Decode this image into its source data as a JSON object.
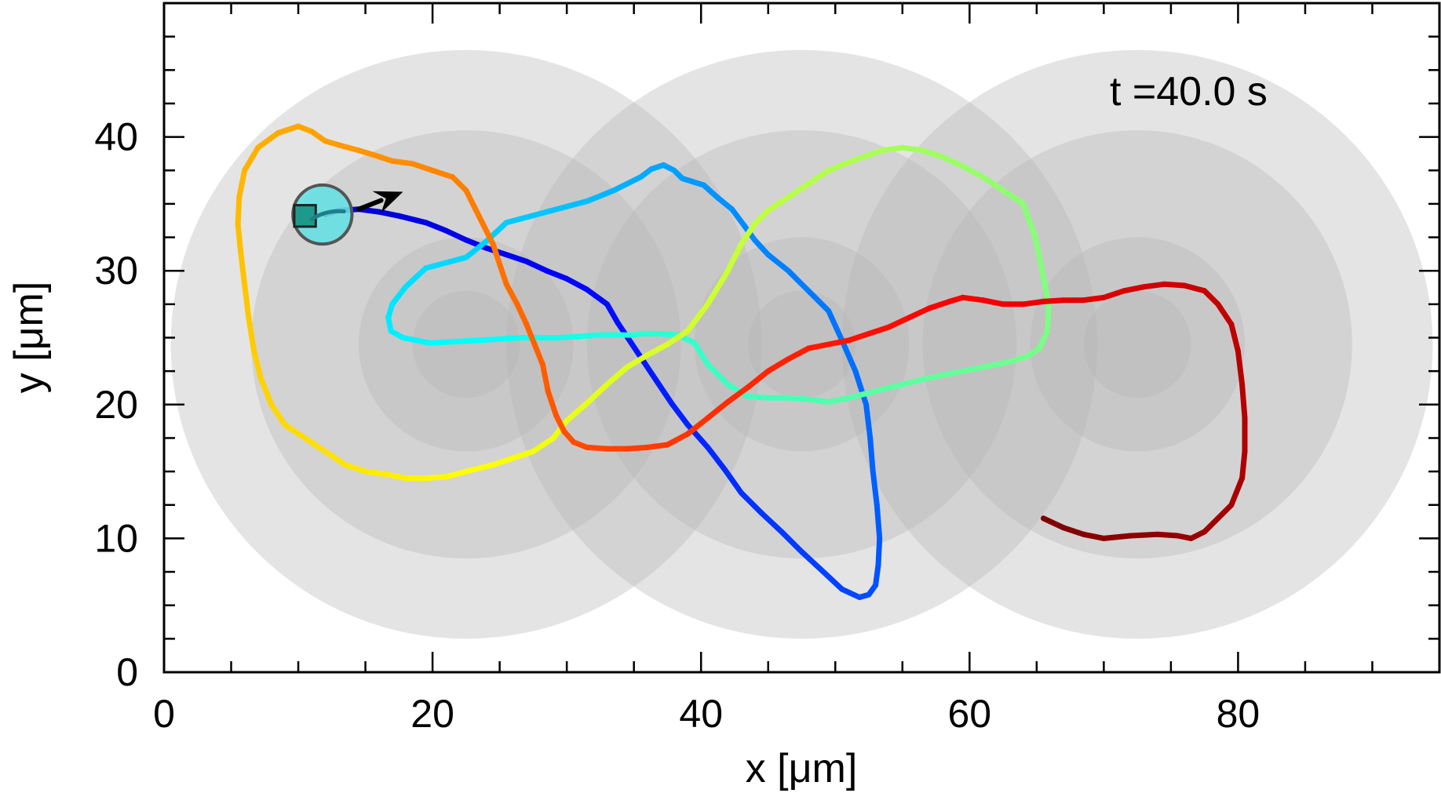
{
  "chart_data": {
    "type": "line",
    "title": "",
    "xlabel": "x [μm]",
    "ylabel": "y [μm]",
    "xlim": [
      0,
      95
    ],
    "ylim": [
      0,
      50
    ],
    "xticks": [
      0,
      20,
      40,
      60,
      80
    ],
    "xtick_labels": [
      "0",
      "20",
      "40",
      "60",
      "80"
    ],
    "yticks": [
      0,
      10,
      20,
      30,
      40
    ],
    "ytick_labels": [
      "0",
      "10",
      "20",
      "30",
      "40"
    ],
    "x_minor_step": 5,
    "y_minor_step": 2.5,
    "grid": false,
    "annotation": "t =40.0 s",
    "colormap": "jet (trajectory colored by time, blue-violet at start to dark red at end)",
    "obstacles": [
      {
        "name": "left",
        "center": [
          22.5,
          24.5
        ],
        "radii": [
          22,
          16,
          8,
          4
        ]
      },
      {
        "name": "middle",
        "center": [
          47.5,
          24.5
        ],
        "radii": [
          22,
          16,
          8,
          4
        ]
      },
      {
        "name": "right",
        "center": [
          72.5,
          24.5
        ],
        "radii": [
          22,
          16,
          8,
          4
        ]
      }
    ],
    "trajectory": {
      "name": "cell path",
      "x": [
        12.0,
        13.0,
        14.5,
        16.0,
        17.5,
        19.5,
        21.0,
        22.5,
        24.0,
        25.5,
        27.0,
        28.5,
        30.0,
        31.5,
        33.0,
        33.8,
        34.8,
        35.8,
        36.8,
        37.8,
        39.0,
        40.5,
        41.8,
        43.0,
        44.5,
        46.0,
        47.5,
        49.0,
        50.5,
        51.8,
        52.5,
        53.0,
        53.2,
        53.3,
        53.1,
        52.8,
        52.6,
        52.3,
        51.5,
        50.5,
        49.5,
        48.0,
        46.5,
        45.0,
        44.0,
        43.2,
        42.3,
        41.2,
        40.2,
        38.6,
        38.0,
        37.2,
        36.3,
        35.5,
        34.5,
        33.5,
        32.5,
        31.5,
        30.0,
        28.5,
        27.0,
        25.5,
        24.0,
        22.5,
        21.0,
        19.5,
        18.0,
        17.0,
        16.7,
        16.9,
        17.8,
        18.8,
        19.8,
        21.5,
        23.5,
        25.0,
        26.5,
        28.0,
        29.5,
        31.0,
        32.5,
        34.0,
        35.0,
        35.6,
        36.8,
        38.3,
        39.5,
        40.5,
        42.0,
        43.5,
        45.0,
        46.5,
        48.0,
        49.5,
        51.0,
        53.0,
        55.0,
        57.0,
        59.0,
        61.0,
        63.0,
        64.3,
        65.2,
        65.8,
        65.9,
        65.4,
        64.9,
        64.0,
        62.5,
        61.0,
        59.5,
        58.0,
        56.5,
        55.0,
        53.5,
        51.5,
        49.5,
        48.0,
        46.5,
        45.0,
        44.0,
        43.0,
        42.0,
        40.5,
        39.0,
        37.5,
        36.0,
        34.5,
        33.0,
        31.5,
        30.0,
        29.0,
        27.5,
        26.0,
        24.5,
        22.5,
        21.0,
        19.5,
        18.0,
        16.5,
        15.0,
        13.5,
        12.0,
        10.5,
        9.0,
        8.0,
        7.2,
        6.7,
        6.3,
        6.0,
        5.7,
        5.5,
        5.6,
        6.0,
        7.0,
        8.5,
        10.0,
        11.0,
        12.0,
        13.0,
        14.5,
        15.8,
        17.0,
        18.5,
        20.0,
        21.5,
        22.5,
        23.5,
        24.5,
        25.0,
        25.5,
        26.3,
        27.0,
        27.6,
        28.2,
        28.6,
        29.2,
        29.8,
        30.5,
        31.5,
        33.0,
        34.5,
        36.0,
        37.5,
        39.0,
        40.5,
        42.0,
        43.5,
        45.0,
        46.5,
        48.0,
        49.5,
        51.0,
        52.5,
        54.0,
        55.5,
        57.0,
        58.5,
        59.5,
        61.0,
        62.5,
        64.0,
        65.5,
        67.0,
        68.5,
        70.0,
        71.5,
        73.0,
        74.5,
        76.0,
        77.5,
        78.5,
        79.5,
        80.0,
        80.3,
        80.5,
        80.5,
        80.3,
        79.5,
        78.5,
        77.5,
        76.5,
        75.5,
        74.0,
        72.0,
        70.0,
        68.5,
        67.0,
        65.5
      ],
      "y": [
        34.2,
        34.5,
        34.6,
        34.4,
        34.1,
        33.6,
        33.0,
        32.3,
        31.7,
        31.2,
        30.7,
        30.0,
        29.4,
        28.6,
        27.5,
        26.1,
        24.6,
        23.1,
        21.6,
        20.1,
        18.5,
        16.8,
        15.1,
        13.4,
        11.9,
        10.5,
        9.0,
        7.6,
        6.2,
        5.6,
        5.8,
        6.5,
        8.0,
        10.0,
        12.5,
        15.0,
        17.5,
        20.0,
        22.5,
        24.8,
        27.0,
        28.5,
        30.0,
        31.2,
        32.3,
        33.4,
        34.6,
        35.5,
        36.4,
        36.9,
        37.5,
        37.9,
        37.6,
        37.0,
        36.5,
        36.0,
        35.6,
        35.2,
        34.8,
        34.4,
        34.0,
        33.6,
        32.2,
        31.0,
        30.6,
        30.2,
        28.8,
        27.5,
        26.5,
        25.5,
        25.0,
        24.8,
        24.6,
        24.7,
        24.8,
        24.9,
        25.0,
        25.0,
        25.0,
        25.1,
        25.2,
        25.2,
        25.2,
        25.3,
        25.3,
        25.2,
        24.6,
        23.0,
        21.5,
        20.6,
        20.5,
        20.5,
        20.4,
        20.2,
        20.5,
        21.0,
        21.5,
        22.0,
        22.4,
        22.8,
        23.2,
        23.6,
        24.2,
        25.5,
        27.5,
        30.0,
        32.5,
        35.0,
        36.0,
        37.0,
        37.8,
        38.5,
        39.0,
        39.2,
        39.0,
        38.3,
        37.5,
        36.5,
        35.5,
        34.5,
        33.5,
        32.0,
        30.0,
        27.5,
        25.5,
        24.5,
        23.7,
        22.8,
        21.5,
        20.1,
        18.8,
        17.5,
        16.5,
        16.0,
        15.5,
        15.0,
        14.6,
        14.5,
        14.5,
        14.8,
        15.0,
        15.5,
        16.5,
        17.5,
        18.5,
        20.0,
        22.0,
        24.0,
        26.5,
        29.0,
        31.5,
        33.5,
        35.5,
        37.5,
        39.2,
        40.3,
        40.8,
        40.4,
        39.7,
        39.4,
        39.0,
        38.6,
        38.2,
        38.0,
        37.5,
        37.0,
        36.0,
        34.0,
        32.0,
        30.5,
        29.0,
        27.5,
        26.0,
        24.5,
        23.0,
        21.0,
        19.2,
        18.0,
        17.2,
        16.8,
        16.7,
        16.7,
        16.8,
        17.0,
        17.8,
        19.0,
        20.2,
        21.3,
        22.5,
        23.4,
        24.2,
        24.5,
        24.8,
        25.3,
        25.8,
        26.5,
        27.2,
        27.7,
        28.0,
        27.8,
        27.5,
        27.5,
        27.7,
        27.8,
        27.8,
        28.0,
        28.5,
        28.8,
        29.0,
        28.9,
        28.5,
        27.5,
        26.0,
        24.0,
        21.5,
        19.0,
        16.5,
        14.5,
        12.5,
        11.5,
        10.5,
        10.0,
        10.2,
        10.3,
        10.2,
        10.0,
        10.3,
        10.8,
        11.5
      ]
    },
    "cell": {
      "center": [
        11.8,
        34.2
      ],
      "radius": 2.2,
      "fill": "#66dfe3",
      "edge": "#555555"
    },
    "heading_arrow": {
      "from": [
        14.5,
        34.6
      ],
      "to": [
        17.8,
        35.9
      ],
      "color": "#000000"
    },
    "start_marker": {
      "center": [
        10.5,
        34.1
      ],
      "half_size": 0.8,
      "fill": "#1e9a8c",
      "edge": "#222222"
    },
    "colors": {
      "background": "#ffffff",
      "obstacle_fill": "#b4b4b4",
      "obstacle_opacity": "0.36",
      "axis": "#000000"
    }
  }
}
